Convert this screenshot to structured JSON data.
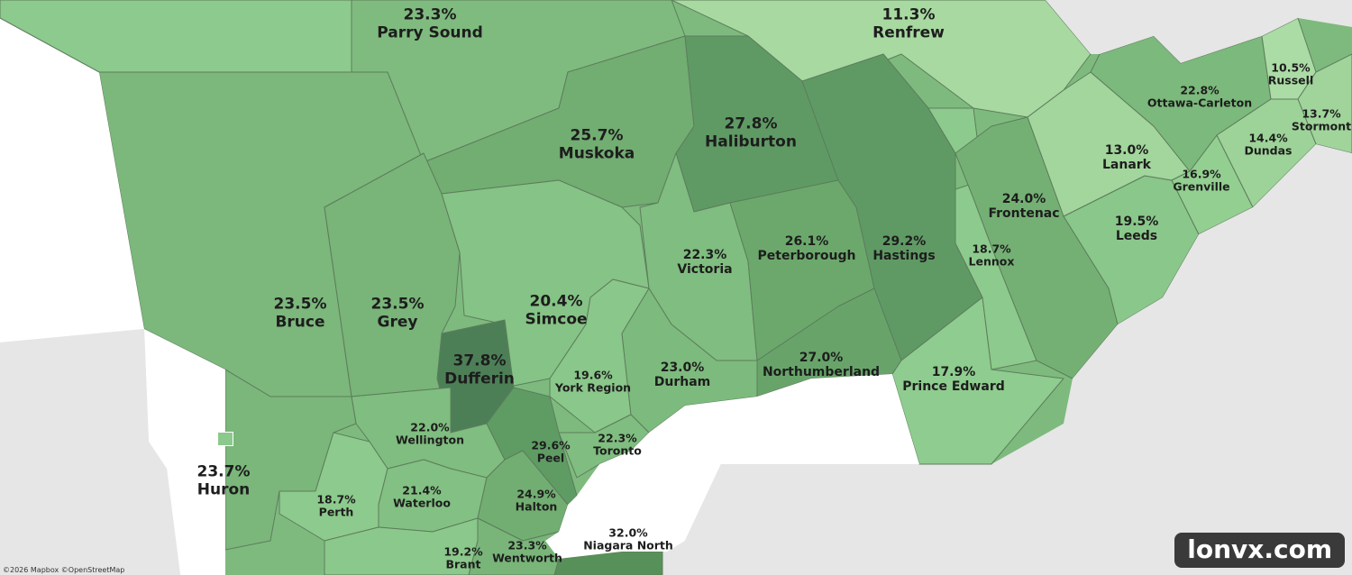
{
  "attribution": "©2026 Mapbox  ©OpenStreetMap",
  "watermark": "lonvx.com",
  "colors": {
    "water": "#ffffff",
    "land_outside": "#e6e6e6"
  },
  "regions": [
    {
      "id": "parry-sound",
      "pct": "23.3%",
      "name": "Parry Sound",
      "fill": "#7fbb7f"
    },
    {
      "id": "renfrew",
      "pct": "11.3%",
      "name": "Renfrew",
      "fill": "#a7d9a0"
    },
    {
      "id": "muskoka",
      "pct": "25.7%",
      "name": "Muskoka",
      "fill": "#72ad72"
    },
    {
      "id": "haliburton",
      "pct": "27.8%",
      "name": "Haliburton",
      "fill": "#5f9a64"
    },
    {
      "id": "bruce",
      "pct": "23.5%",
      "name": "Bruce",
      "fill": "#7cb77c"
    },
    {
      "id": "grey",
      "pct": "23.5%",
      "name": "Grey",
      "fill": "#79b479"
    },
    {
      "id": "simcoe",
      "pct": "20.4%",
      "name": "Simcoe",
      "fill": "#86c386"
    },
    {
      "id": "victoria",
      "pct": "22.3%",
      "name": "Victoria",
      "fill": "#80bd80"
    },
    {
      "id": "peterborough",
      "pct": "26.1%",
      "name": "Peterborough",
      "fill": "#6ca86c"
    },
    {
      "id": "hastings",
      "pct": "29.2%",
      "name": "Hastings",
      "fill": "#5f9a64"
    },
    {
      "id": "dufferin",
      "pct": "37.8%",
      "name": "Dufferin",
      "fill": "#4d7f57"
    },
    {
      "id": "york-region",
      "pct": "19.6%",
      "name": "York Region",
      "fill": "#8ac78a"
    },
    {
      "id": "durham",
      "pct": "23.0%",
      "name": "Durham",
      "fill": "#7dba7d"
    },
    {
      "id": "northumberland",
      "pct": "27.0%",
      "name": "Northumberland",
      "fill": "#68a46a"
    },
    {
      "id": "prince-edward",
      "pct": "17.9%",
      "name": "Prince Edward",
      "fill": "#8fcc8f"
    },
    {
      "id": "lennox",
      "pct": "18.7%",
      "name": "Lennox",
      "fill": "#8dca8d"
    },
    {
      "id": "frontenac",
      "pct": "24.0%",
      "name": "Frontenac",
      "fill": "#74b074"
    },
    {
      "id": "leeds",
      "pct": "19.5%",
      "name": "Leeds",
      "fill": "#8ac78a"
    },
    {
      "id": "lanark",
      "pct": "13.0%",
      "name": "Lanark",
      "fill": "#a2d69c"
    },
    {
      "id": "grenville",
      "pct": "16.9%",
      "name": "Grenville",
      "fill": "#93cf91"
    },
    {
      "id": "ottawa-carleton",
      "pct": "22.8%",
      "name": "Ottawa-Carleton",
      "fill": "#7cb97c"
    },
    {
      "id": "russell",
      "pct": "10.5%",
      "name": "Russell",
      "fill": "#acdca6"
    },
    {
      "id": "stormont",
      "pct": "13.7%",
      "name": "Stormont",
      "fill": "#a0d49b"
    },
    {
      "id": "dundas",
      "pct": "14.4%",
      "name": "Dundas",
      "fill": "#9dd398"
    },
    {
      "id": "wellington",
      "pct": "22.0%",
      "name": "Wellington",
      "fill": "#80bd80"
    },
    {
      "id": "peel",
      "pct": "29.6%",
      "name": "Peel",
      "fill": "#5f9c64"
    },
    {
      "id": "toronto",
      "pct": "22.3%",
      "name": "Toronto",
      "fill": "#80bd80"
    },
    {
      "id": "huron",
      "pct": "23.7%",
      "name": "Huron",
      "fill": "#7bb67b"
    },
    {
      "id": "perth",
      "pct": "18.7%",
      "name": "Perth",
      "fill": "#8dca8d"
    },
    {
      "id": "waterloo",
      "pct": "21.4%",
      "name": "Waterloo",
      "fill": "#83c083"
    },
    {
      "id": "halton",
      "pct": "24.9%",
      "name": "Halton",
      "fill": "#72ae72"
    },
    {
      "id": "niagara-north",
      "pct": "32.0%",
      "name": "Niagara North",
      "fill": "#579159"
    },
    {
      "id": "brant",
      "pct": "19.2%",
      "name": "Brant",
      "fill": "#8bc88b"
    },
    {
      "id": "wentworth",
      "pct": "23.3%",
      "name": "Wentworth",
      "fill": "#79b579"
    }
  ]
}
